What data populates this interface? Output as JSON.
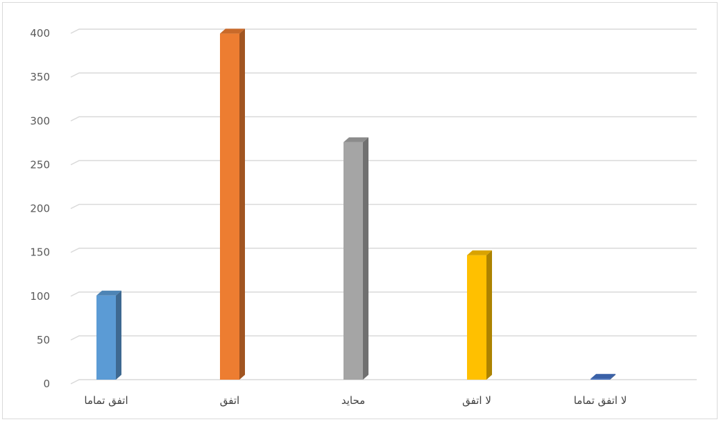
{
  "chart_data": {
    "type": "bar",
    "style": "3d-column",
    "categories": [
      "اتفق تماما",
      "اتفق",
      "محايد",
      "لا اتفق",
      "لا اتفق تماما"
    ],
    "values": [
      96,
      395,
      271,
      142,
      1
    ],
    "colors": [
      "#5b9bd5",
      "#ed7d31",
      "#a5a5a5",
      "#ffc000",
      "#4472c4"
    ],
    "ylim": [
      0,
      400
    ],
    "yticks": [
      0,
      50,
      100,
      150,
      200,
      250,
      300,
      350,
      400
    ],
    "grid": true,
    "legend": "none",
    "title": "",
    "xlabel": "",
    "ylabel": ""
  }
}
